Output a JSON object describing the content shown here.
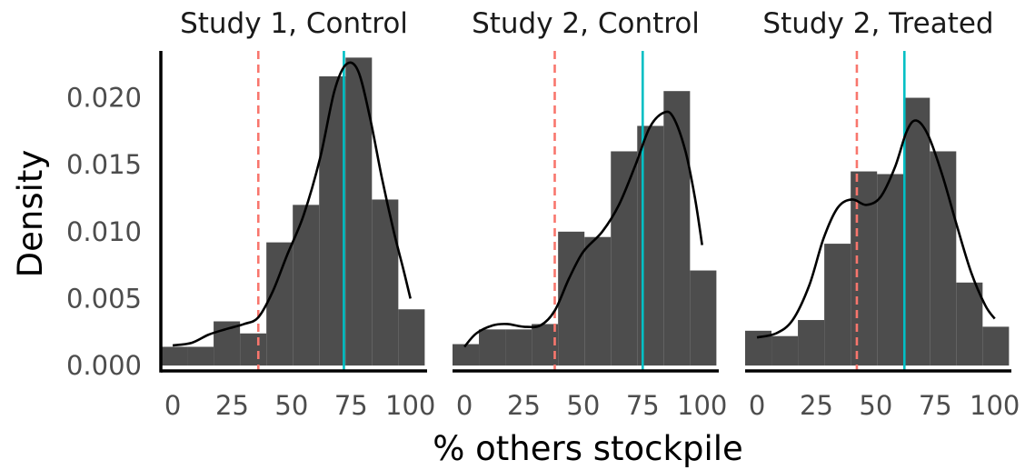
{
  "chart_data": {
    "type": "histogram",
    "ylabel": "Density",
    "xlabel": "% others stockpile",
    "xlim": [
      -5,
      107
    ],
    "ylim": [
      -0.0004,
      0.0235
    ],
    "x_ticks": [
      0,
      25,
      50,
      75,
      100
    ],
    "y_ticks": [
      0,
      0.005,
      0.01,
      0.015,
      0.02
    ],
    "y_tick_labels": [
      "0.000",
      "0.005",
      "0.010",
      "0.015",
      "0.020"
    ],
    "bin_edges": [
      -5,
      6.1,
      17.2,
      28.3,
      39.4,
      50.5,
      61.6,
      72.7,
      83.8,
      94.9,
      106
    ],
    "colors": {
      "bars": "#4d4d4d",
      "dashed_line": "#F8766D",
      "solid_line": "#00BFC4",
      "density": "#000000"
    },
    "panels": [
      {
        "title": "Study 1, Control",
        "bar_heights": [
          0.0014,
          0.0014,
          0.0033,
          0.0024,
          0.0092,
          0.012,
          0.0216,
          0.023,
          0.0124,
          0.0042
        ],
        "dashed_line_x": 36,
        "solid_line_x": 72,
        "density_curve": [
          [
            0,
            0.0015
          ],
          [
            8,
            0.0017
          ],
          [
            15,
            0.0023
          ],
          [
            22,
            0.0027
          ],
          [
            30,
            0.0031
          ],
          [
            36,
            0.0036
          ],
          [
            42,
            0.0055
          ],
          [
            48,
            0.0082
          ],
          [
            55,
            0.0112
          ],
          [
            62,
            0.0155
          ],
          [
            68,
            0.0205
          ],
          [
            73,
            0.0225
          ],
          [
            78,
            0.022
          ],
          [
            83,
            0.0185
          ],
          [
            88,
            0.014
          ],
          [
            93,
            0.01
          ],
          [
            97,
            0.0072
          ],
          [
            100,
            0.005
          ]
        ]
      },
      {
        "title": "Study 2, Control",
        "bar_heights": [
          0.0016,
          0.0027,
          0.0027,
          0.0031,
          0.01,
          0.0096,
          0.016,
          0.0179,
          0.0205,
          0.0071
        ],
        "dashed_line_x": 38,
        "solid_line_x": 75,
        "density_curve": [
          [
            0,
            0.0014
          ],
          [
            5,
            0.0024
          ],
          [
            12,
            0.003
          ],
          [
            18,
            0.0031
          ],
          [
            25,
            0.0029
          ],
          [
            32,
            0.003
          ],
          [
            38,
            0.0041
          ],
          [
            44,
            0.0065
          ],
          [
            50,
            0.0085
          ],
          [
            58,
            0.01
          ],
          [
            65,
            0.012
          ],
          [
            72,
            0.015
          ],
          [
            78,
            0.0178
          ],
          [
            84,
            0.0189
          ],
          [
            88,
            0.0185
          ],
          [
            93,
            0.016
          ],
          [
            97,
            0.0125
          ],
          [
            100,
            0.009
          ]
        ]
      },
      {
        "title": "Study 2, Treated",
        "bar_heights": [
          0.0026,
          0.0022,
          0.0034,
          0.0091,
          0.0145,
          0.0143,
          0.02,
          0.016,
          0.0062,
          0.0029
        ],
        "dashed_line_x": 42,
        "solid_line_x": 62,
        "density_curve": [
          [
            0,
            0.0021
          ],
          [
            8,
            0.0024
          ],
          [
            15,
            0.0034
          ],
          [
            22,
            0.006
          ],
          [
            28,
            0.0095
          ],
          [
            34,
            0.0118
          ],
          [
            40,
            0.0124
          ],
          [
            46,
            0.012
          ],
          [
            52,
            0.0126
          ],
          [
            58,
            0.0148
          ],
          [
            63,
            0.0175
          ],
          [
            67,
            0.0183
          ],
          [
            72,
            0.0172
          ],
          [
            78,
            0.0142
          ],
          [
            84,
            0.0105
          ],
          [
            90,
            0.007
          ],
          [
            96,
            0.0045
          ],
          [
            100,
            0.0035
          ]
        ]
      }
    ]
  }
}
